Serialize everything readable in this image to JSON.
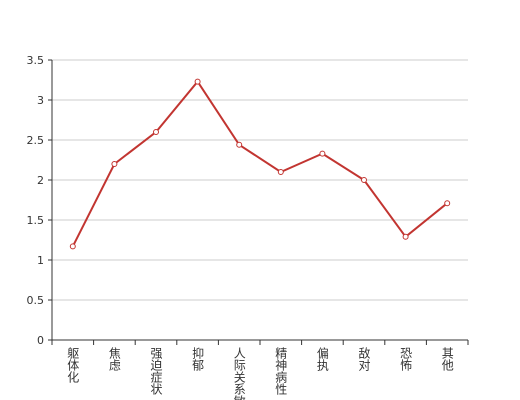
{
  "chart_data": {
    "type": "line",
    "categories": [
      "躯体化",
      "焦虑",
      "强迫症状",
      "抑郁",
      "人际关系敏感",
      "精神病性",
      "偏执",
      "敌对",
      "恐怖",
      "其他"
    ],
    "series": [
      {
        "color": "#c23531",
        "values": [
          1.17,
          2.2,
          2.6,
          3.23,
          2.44,
          2.1,
          2.33,
          2.0,
          1.29,
          1.71
        ]
      }
    ],
    "ylim": [
      0,
      3.5
    ],
    "yticks": [
      0,
      0.5,
      1,
      1.5,
      2,
      2.5,
      3,
      3.5
    ],
    "grid": true
  }
}
